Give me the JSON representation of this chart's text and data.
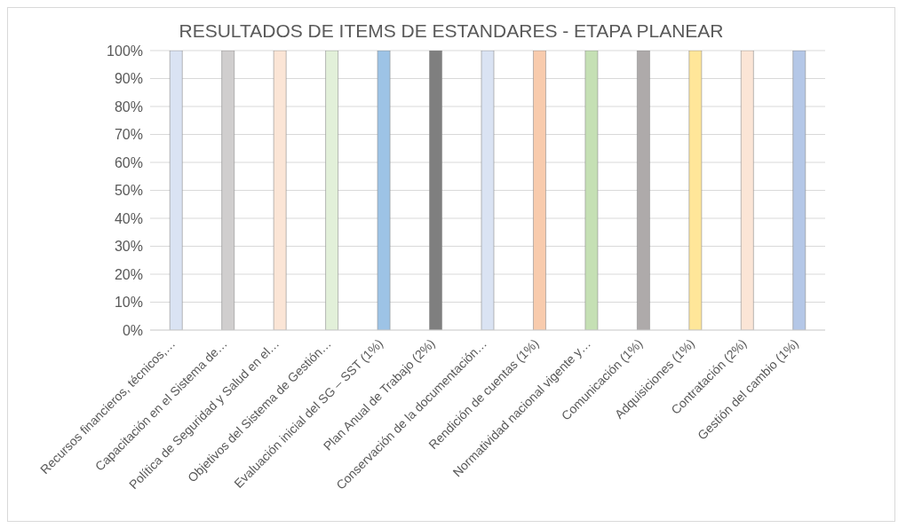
{
  "chart_data": {
    "type": "bar",
    "title": "RESULTADOS DE ITEMS DE ESTANDARES - ETAPA PLANEAR",
    "categories": [
      "Recursos financieros, técnicos,…",
      "Capacitación en el Sistema de…",
      "Política de Seguridad y Salud en el…",
      "Objetivos del Sistema de Gestión…",
      "Evaluación inicial del SG – SST (1%)",
      "Plan Anual de Trabajo (2%)",
      "Conservación de la documentación…",
      "Rendición de cuentas (1%)",
      "Normatividad nacional vigente y…",
      "Comunicación (1%)",
      "Adquisiciones (1%)",
      "Contratación (2%)",
      "Gestión del cambio (1%)"
    ],
    "values": [
      100,
      100,
      100,
      100,
      100,
      100,
      100,
      100,
      100,
      100,
      100,
      100,
      100
    ],
    "colors": [
      "#dae3f3",
      "#d0cece",
      "#fbe5d6",
      "#e2f0d9",
      "#9dc3e6",
      "#7f7f7f",
      "#dae3f3",
      "#f8cbad",
      "#c5e0b4",
      "#aeaaaa",
      "#ffe699",
      "#fbe5d6",
      "#b4c7e7"
    ],
    "ylim": [
      0,
      100
    ],
    "yticks": [
      {
        "value": 0,
        "label": "0%"
      },
      {
        "value": 10,
        "label": "10%"
      },
      {
        "value": 20,
        "label": "20%"
      },
      {
        "value": 30,
        "label": "30%"
      },
      {
        "value": 40,
        "label": "40%"
      },
      {
        "value": 50,
        "label": "50%"
      },
      {
        "value": 60,
        "label": "60%"
      },
      {
        "value": 70,
        "label": "70%"
      },
      {
        "value": 80,
        "label": "80%"
      },
      {
        "value": 90,
        "label": "90%"
      },
      {
        "value": 100,
        "label": "100%"
      }
    ],
    "grid": "y"
  }
}
